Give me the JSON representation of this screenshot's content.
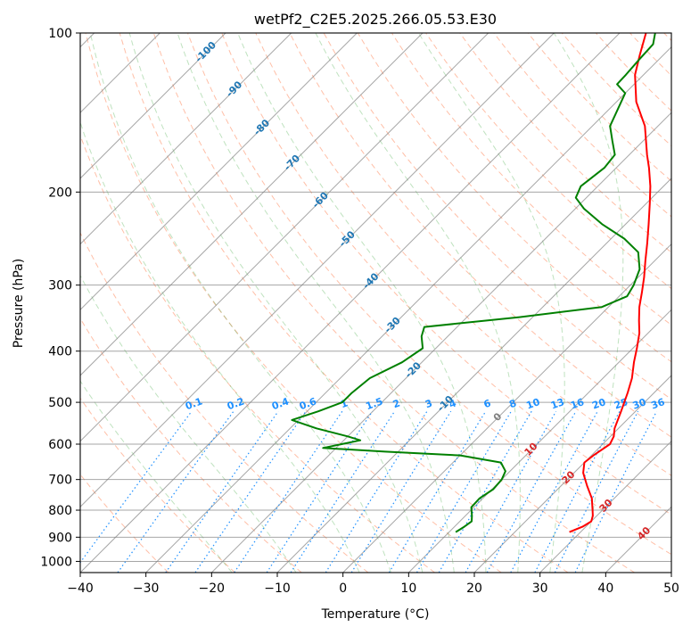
{
  "chart_data": {
    "type": "skew-t",
    "title": "wetPf2_C2E5.2025.266.05.53.E30",
    "xlabel": "Temperature (°C)",
    "ylabel": "Pressure (hPa)",
    "xlim": [
      -40,
      50
    ],
    "ylim": [
      1050,
      100
    ],
    "y_scale": "log",
    "grid": true,
    "x_ticks": [
      -40,
      -30,
      -20,
      -10,
      0,
      10,
      20,
      30,
      40,
      50
    ],
    "x_tick_labels": [
      "−40",
      "−30",
      "−20",
      "−10",
      "0",
      "10",
      "20",
      "30",
      "40",
      "50"
    ],
    "y_ticks": [
      100,
      200,
      300,
      400,
      500,
      600,
      700,
      800,
      900,
      1000
    ],
    "y_tick_labels": [
      "100",
      "200",
      "300",
      "400",
      "500",
      "600",
      "700",
      "800",
      "900",
      "1000"
    ],
    "series": [
      {
        "color": "#ff0000",
        "values": [
          [
            880,
            28.3
          ],
          [
            860,
            29.5
          ],
          [
            840,
            30.0
          ],
          [
            820,
            29.4
          ],
          [
            800,
            28.5
          ],
          [
            760,
            26.6
          ],
          [
            720,
            24.0
          ],
          [
            680,
            21.4
          ],
          [
            650,
            20.0
          ],
          [
            630,
            20.3
          ],
          [
            600,
            21.1
          ],
          [
            580,
            20.5
          ],
          [
            560,
            19.4
          ],
          [
            520,
            17.8
          ],
          [
            480,
            16.0
          ],
          [
            450,
            14.4
          ],
          [
            420,
            12.3
          ],
          [
            395,
            10.6
          ],
          [
            370,
            8.7
          ],
          [
            350,
            6.7
          ],
          [
            330,
            4.7
          ],
          [
            310,
            2.9
          ],
          [
            290,
            0.9
          ],
          [
            270,
            -1.4
          ],
          [
            250,
            -3.8
          ],
          [
            230,
            -6.5
          ],
          [
            210,
            -9.5
          ],
          [
            195,
            -12.0
          ],
          [
            180,
            -15.0
          ],
          [
            170,
            -17.3
          ],
          [
            150,
            -22.0
          ],
          [
            135,
            -27.0
          ],
          [
            120,
            -31.3
          ],
          [
            110,
            -33.6
          ],
          [
            100,
            -36.0
          ]
        ]
      },
      {
        "color": "#008000",
        "values": [
          [
            880,
            11.0
          ],
          [
            860,
            11.5
          ],
          [
            840,
            11.8
          ],
          [
            820,
            11.0
          ],
          [
            790,
            9.6
          ],
          [
            760,
            9.5
          ],
          [
            730,
            10.2
          ],
          [
            700,
            10.0
          ],
          [
            675,
            9.3
          ],
          [
            650,
            7.3
          ],
          [
            630,
            0.0
          ],
          [
            620,
            -12.0
          ],
          [
            610,
            -22.0
          ],
          [
            590,
            -17.5
          ],
          [
            580,
            -20.0
          ],
          [
            560,
            -26.0
          ],
          [
            540,
            -31.0
          ],
          [
            520,
            -28.3
          ],
          [
            500,
            -26.0
          ],
          [
            480,
            -26.0
          ],
          [
            450,
            -25.5
          ],
          [
            420,
            -23.0
          ],
          [
            395,
            -22.0
          ],
          [
            375,
            -24.0
          ],
          [
            360,
            -25.0
          ],
          [
            345,
            -12.0
          ],
          [
            330,
            -1.0
          ],
          [
            315,
            1.2
          ],
          [
            300,
            0.5
          ],
          [
            280,
            -1.0
          ],
          [
            260,
            -3.8
          ],
          [
            245,
            -8.0
          ],
          [
            230,
            -13.6
          ],
          [
            215,
            -18.7
          ],
          [
            205,
            -21.6
          ],
          [
            195,
            -22.6
          ],
          [
            180,
            -21.8
          ],
          [
            170,
            -22.2
          ],
          [
            160,
            -24.7
          ],
          [
            150,
            -27.3
          ],
          [
            140,
            -28.6
          ],
          [
            130,
            -30.0
          ],
          [
            125,
            -32.6
          ],
          [
            120,
            -32.7
          ],
          [
            112,
            -33.0
          ],
          [
            105,
            -33.2
          ],
          [
            100,
            -34.6
          ]
        ]
      }
    ],
    "dry_adiabats_theta_C": [
      -30,
      -20,
      -10,
      0,
      10,
      20,
      30,
      40,
      50,
      60,
      70,
      80,
      90,
      100,
      110,
      120,
      130,
      140,
      150,
      160,
      170,
      180,
      190,
      200,
      210,
      220,
      230
    ],
    "moist_adiabats_C": [
      -20,
      -10,
      0,
      5,
      10,
      15,
      20,
      25,
      30,
      35
    ],
    "mixing_ratio_lines_gkg": [
      0.1,
      0.2,
      0.4,
      0.6,
      1,
      1.5,
      2,
      3,
      4,
      6,
      8,
      10,
      13,
      16,
      20,
      25,
      30,
      36
    ],
    "mixing_ratio_labels": [
      "0.1",
      "0.2",
      "0.4",
      "0.6",
      "1",
      "1.5",
      "2",
      "3",
      "4",
      "6",
      "8",
      "10",
      "13",
      "16",
      "20",
      "25",
      "30",
      "36"
    ],
    "isotherm_labels_blue": [
      "-100",
      "-90",
      "-80",
      "-70",
      "-60",
      "-50",
      "-40",
      "-30",
      "-20",
      "-10"
    ],
    "isotherm_labels_red": [
      "0",
      "10",
      "20",
      "30",
      "40"
    ],
    "colors": {
      "isotherm": "#808080",
      "dry_adiabat": "#ff7f50",
      "moist_adiabat": "#2ca02c",
      "mixing_ratio": "#1e90ff",
      "iso_label_blue": "#1f77b4",
      "iso_label_red": "#d62728",
      "iso_label_zero": "#808080",
      "mixing_label": "#1e90ff"
    }
  }
}
